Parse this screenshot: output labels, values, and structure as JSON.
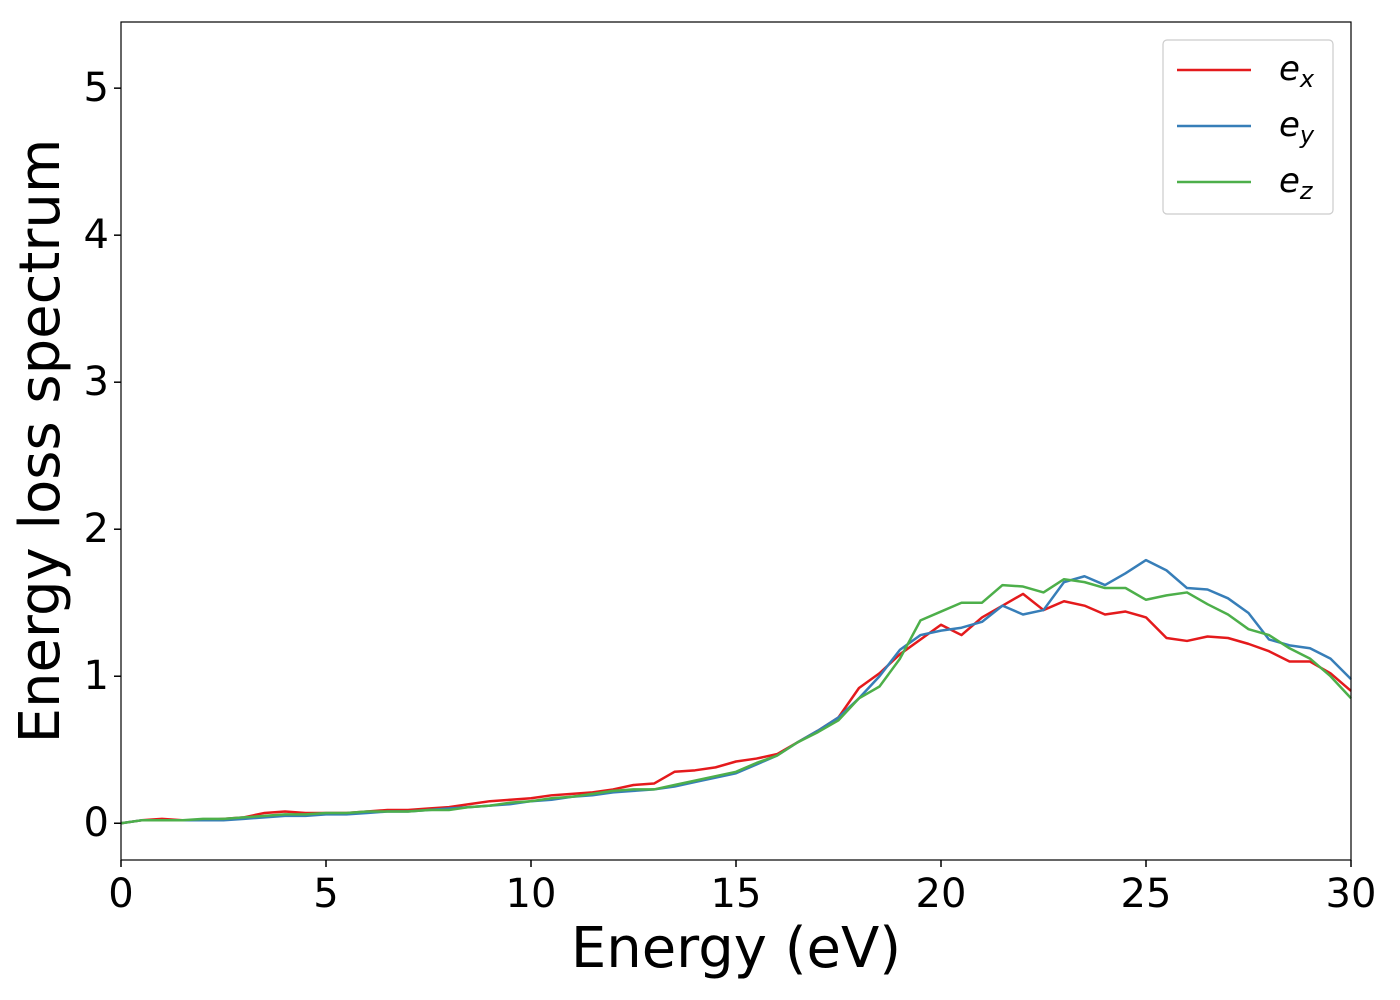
{
  "chart_data": {
    "type": "line",
    "xlabel": "Energy (eV)",
    "ylabel": "Energy loss spectrum",
    "x": [
      0,
      0.5,
      1,
      1.5,
      2,
      2.5,
      3,
      3.5,
      4,
      4.5,
      5,
      5.5,
      6,
      6.5,
      7,
      7.5,
      8,
      8.5,
      9,
      9.5,
      10,
      10.5,
      11,
      11.5,
      12,
      12.5,
      13,
      13.5,
      14,
      14.5,
      15,
      15.5,
      16,
      16.5,
      17,
      17.5,
      18,
      18.5,
      19,
      19.5,
      20,
      20.5,
      21,
      21.5,
      22,
      22.5,
      23,
      23.5,
      24,
      24.5,
      25,
      25.5,
      26,
      26.5,
      27,
      27.5,
      28,
      28.5,
      29,
      29.5,
      30
    ],
    "series": [
      {
        "name": "e_x",
        "color": "#e41a1c",
        "values": [
          0,
          0.02,
          0.03,
          0.02,
          0.02,
          0.03,
          0.04,
          0.07,
          0.08,
          0.07,
          0.07,
          0.07,
          0.08,
          0.09,
          0.09,
          0.1,
          0.11,
          0.13,
          0.15,
          0.16,
          0.17,
          0.19,
          0.2,
          0.21,
          0.23,
          0.26,
          0.27,
          0.35,
          0.36,
          0.38,
          0.42,
          0.44,
          0.47,
          0.55,
          0.63,
          0.72,
          0.92,
          1.02,
          1.15,
          1.25,
          1.35,
          1.28,
          1.4,
          1.48,
          1.56,
          1.45,
          1.51,
          1.48,
          1.42,
          1.44,
          1.4,
          1.26,
          1.24,
          1.27,
          1.26,
          1.22,
          1.17,
          1.1,
          1.1,
          1.02,
          0.9
        ]
      },
      {
        "name": "e_y",
        "color": "#377eb8",
        "values": [
          0,
          0.02,
          0.02,
          0.02,
          0.02,
          0.02,
          0.03,
          0.04,
          0.05,
          0.05,
          0.06,
          0.06,
          0.07,
          0.08,
          0.08,
          0.09,
          0.1,
          0.11,
          0.12,
          0.13,
          0.15,
          0.16,
          0.18,
          0.19,
          0.21,
          0.22,
          0.23,
          0.25,
          0.28,
          0.31,
          0.34,
          0.4,
          0.46,
          0.55,
          0.63,
          0.72,
          0.85,
          1.0,
          1.18,
          1.28,
          1.31,
          1.33,
          1.37,
          1.48,
          1.42,
          1.45,
          1.64,
          1.68,
          1.62,
          1.7,
          1.79,
          1.72,
          1.6,
          1.59,
          1.53,
          1.43,
          1.25,
          1.21,
          1.19,
          1.12,
          0.98
        ]
      },
      {
        "name": "e_z",
        "color": "#4daf4a",
        "values": [
          0,
          0.02,
          0.02,
          0.02,
          0.03,
          0.03,
          0.04,
          0.05,
          0.06,
          0.06,
          0.07,
          0.07,
          0.08,
          0.08,
          0.08,
          0.09,
          0.09,
          0.11,
          0.12,
          0.14,
          0.15,
          0.17,
          0.18,
          0.2,
          0.22,
          0.23,
          0.23,
          0.26,
          0.29,
          0.32,
          0.35,
          0.41,
          0.46,
          0.55,
          0.62,
          0.7,
          0.85,
          0.93,
          1.12,
          1.38,
          1.44,
          1.5,
          1.5,
          1.62,
          1.61,
          1.57,
          1.66,
          1.64,
          1.6,
          1.6,
          1.52,
          1.55,
          1.57,
          1.49,
          1.42,
          1.32,
          1.28,
          1.19,
          1.12,
          1.0,
          0.85
        ]
      }
    ],
    "xlim": [
      0,
      30
    ],
    "xticks": [
      0,
      5,
      10,
      15,
      20,
      25,
      30
    ],
    "ylim": [
      -0.25,
      5.45
    ],
    "yticks": [
      0,
      1,
      2,
      3,
      4,
      5
    ],
    "legend": "upper right"
  }
}
